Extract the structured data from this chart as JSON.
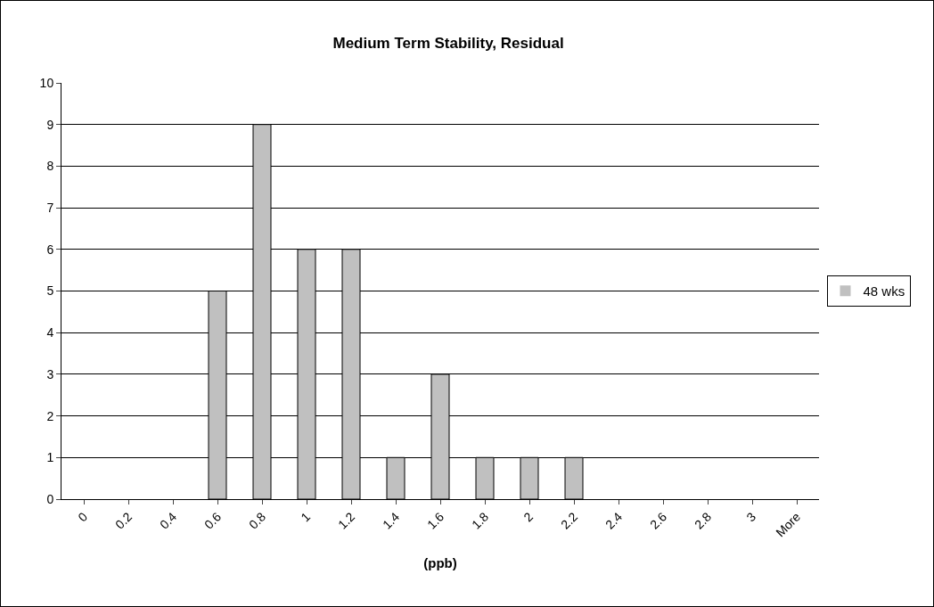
{
  "chart_data": {
    "type": "bar",
    "title": "Medium Term Stability, Residual",
    "xlabel": "(ppb)",
    "categories": [
      "0",
      "0.2",
      "0.4",
      "0.6",
      "0.8",
      "1",
      "1.2",
      "1.4",
      "1.6",
      "1.8",
      "2",
      "2.2",
      "2.4",
      "2.6",
      "2.8",
      "3",
      "More"
    ],
    "series": [
      {
        "name": "48 wks",
        "color": "#c0c0c0",
        "values": [
          0,
          0,
          0,
          5,
          9,
          6,
          6,
          1,
          3,
          1,
          1,
          1,
          0,
          0,
          0,
          0,
          0
        ]
      }
    ],
    "ylim": [
      0,
      10
    ],
    "yticks": [
      0,
      1,
      2,
      3,
      4,
      5,
      6,
      7,
      8,
      9,
      10
    ],
    "grid": "y",
    "legend": "right"
  }
}
